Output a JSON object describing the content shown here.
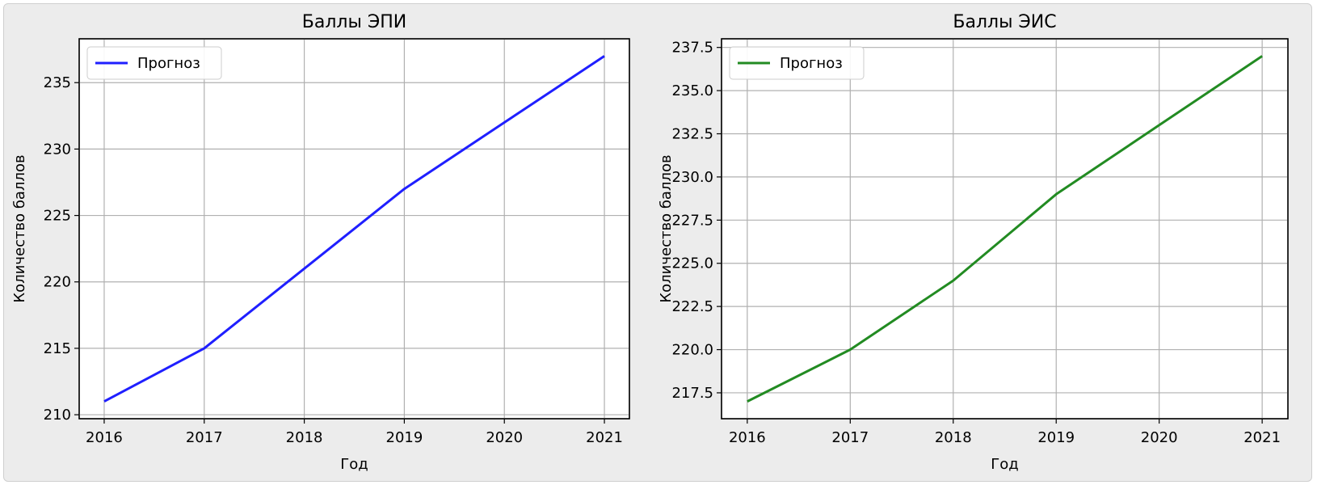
{
  "chart_data": [
    {
      "type": "line",
      "title": "Баллы ЭПИ",
      "xlabel": "Год",
      "ylabel": "Количество баллов",
      "x": [
        2016,
        2017,
        2018,
        2019,
        2020,
        2021
      ],
      "x_ticks": [
        "2016",
        "2017",
        "2018",
        "2019",
        "2020",
        "2021"
      ],
      "xlim": [
        2015.75,
        2021.25
      ],
      "ylim": [
        209.7,
        238.3
      ],
      "y_ticks": [
        "210",
        "215",
        "220",
        "225",
        "230",
        "235"
      ],
      "y_tick_values": [
        210,
        215,
        220,
        225,
        230,
        235
      ],
      "series": [
        {
          "name": "Прогноз",
          "color": "#1f1fff",
          "values": [
            211,
            215,
            221,
            227,
            232,
            237
          ]
        }
      ],
      "grid": true,
      "legend": "top-left"
    },
    {
      "type": "line",
      "title": "Баллы ЭИС",
      "xlabel": "Год",
      "ylabel": "Количество баллов",
      "x": [
        2016,
        2017,
        2018,
        2019,
        2020,
        2021
      ],
      "x_ticks": [
        "2016",
        "2017",
        "2018",
        "2019",
        "2020",
        "2021"
      ],
      "xlim": [
        2015.75,
        2021.25
      ],
      "ylim": [
        216.0,
        238.0
      ],
      "y_ticks": [
        "217.5",
        "220.0",
        "222.5",
        "225.0",
        "227.5",
        "230.0",
        "232.5",
        "235.0",
        "237.5"
      ],
      "y_tick_values": [
        217.5,
        220.0,
        222.5,
        225.0,
        227.5,
        230.0,
        232.5,
        235.0,
        237.5
      ],
      "series": [
        {
          "name": "Прогноз",
          "color": "#228b22",
          "values": [
            217,
            220,
            224,
            229,
            233,
            237
          ]
        }
      ],
      "grid": true,
      "legend": "top-left"
    }
  ]
}
